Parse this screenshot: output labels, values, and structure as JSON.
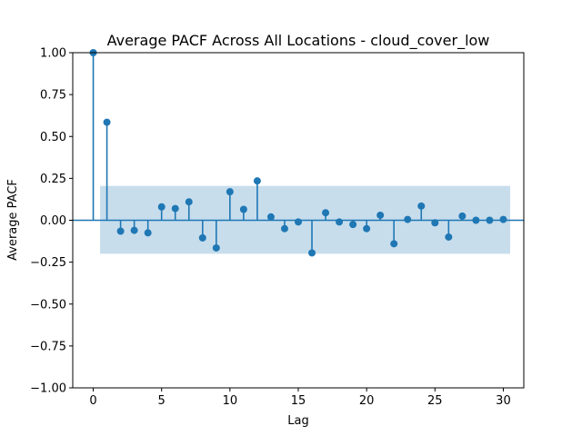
{
  "chart_data": {
    "type": "stem",
    "title": "Average PACF Across All Locations - cloud_cover_low",
    "xlabel": "Lag",
    "ylabel": "Average PACF",
    "xlim": [
      -1.5,
      31.5
    ],
    "ylim": [
      -1.0,
      1.0
    ],
    "xticks": [
      0,
      5,
      10,
      15,
      20,
      25,
      30
    ],
    "yticks": [
      -1.0,
      -0.75,
      -0.5,
      -0.25,
      0.0,
      0.25,
      0.5,
      0.75,
      1.0
    ],
    "ytick_labels": [
      "−1.00",
      "−0.75",
      "−0.50",
      "−0.25",
      "0.00",
      "0.25",
      "0.50",
      "0.75",
      "1.00"
    ],
    "xtick_labels": [
      "0",
      "5",
      "10",
      "15",
      "20",
      "25",
      "30"
    ],
    "confidence_band": {
      "x_range": [
        0.5,
        30.5
      ],
      "lower": -0.2,
      "upper": 0.205
    },
    "grid": false,
    "colors": {
      "series": "#1f77b4",
      "band": "#1f77b4",
      "band_opacity": 0.25
    },
    "lags": [
      0,
      1,
      2,
      3,
      4,
      5,
      6,
      7,
      8,
      9,
      10,
      11,
      12,
      13,
      14,
      15,
      16,
      17,
      18,
      19,
      20,
      21,
      22,
      23,
      24,
      25,
      26,
      27,
      28,
      29,
      30
    ],
    "values": [
      1.0,
      0.585,
      -0.065,
      -0.06,
      -0.075,
      0.08,
      0.07,
      0.11,
      -0.105,
      -0.165,
      0.17,
      0.065,
      0.235,
      0.02,
      -0.05,
      -0.01,
      -0.195,
      0.045,
      -0.01,
      -0.025,
      -0.05,
      0.03,
      -0.14,
      0.005,
      0.085,
      -0.015,
      -0.1,
      0.025,
      0.0,
      0.0,
      0.005
    ]
  }
}
